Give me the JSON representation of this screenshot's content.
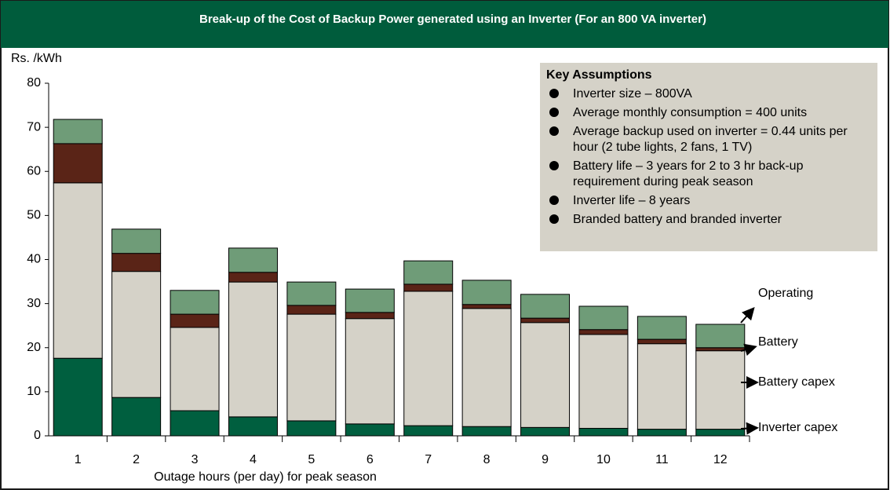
{
  "chart_data": {
    "type": "stacked_bar",
    "title": "Break-up of the Cost of Backup Power generated using an Inverter (For an 800 VA inverter)",
    "y_label": "Rs. /kWh",
    "x_label": "Outage hours (per day) for peak season",
    "categories": [
      "1",
      "2",
      "3",
      "4",
      "5",
      "6",
      "7",
      "8",
      "9",
      "10",
      "11",
      "12"
    ],
    "series": [
      {
        "name": "Inverter capex",
        "color": "#005f3f",
        "values": [
          17.6,
          8.7,
          5.7,
          4.3,
          3.4,
          2.7,
          2.3,
          2.1,
          1.9,
          1.7,
          1.5,
          1.5
        ]
      },
      {
        "name": "Battery capex",
        "color": "#d5d2c8",
        "values": [
          39.8,
          28.6,
          18.9,
          30.6,
          24.2,
          23.9,
          30.5,
          26.8,
          23.8,
          21.3,
          19.4,
          17.8
        ]
      },
      {
        "name": "Battery",
        "color": "#5a2417",
        "values": [
          8.9,
          4.1,
          3.0,
          2.2,
          2.0,
          1.4,
          1.6,
          0.9,
          1.0,
          1.1,
          1.0,
          0.7
        ]
      },
      {
        "name": "Operating",
        "color": "#6f9c78",
        "values": [
          5.5,
          5.5,
          5.4,
          5.5,
          5.3,
          5.3,
          5.3,
          5.5,
          5.4,
          5.3,
          5.2,
          5.3
        ]
      }
    ],
    "ylim": [
      0,
      80
    ],
    "yticks": [
      0,
      10,
      20,
      30,
      40,
      50,
      60,
      70,
      80
    ],
    "assumptions_title": "Key Assumptions",
    "assumptions": [
      "Inverter size – 800VA",
      "Average monthly consumption = 400 units",
      "Average backup used on inverter = 0.44 units per hour (2 tube lights, 2 fans, 1 TV)",
      "Battery life – 3 years for 2 to 3 hr back-up requirement during peak season",
      "Inverter life – 8 years",
      "Branded battery and branded inverter"
    ]
  }
}
